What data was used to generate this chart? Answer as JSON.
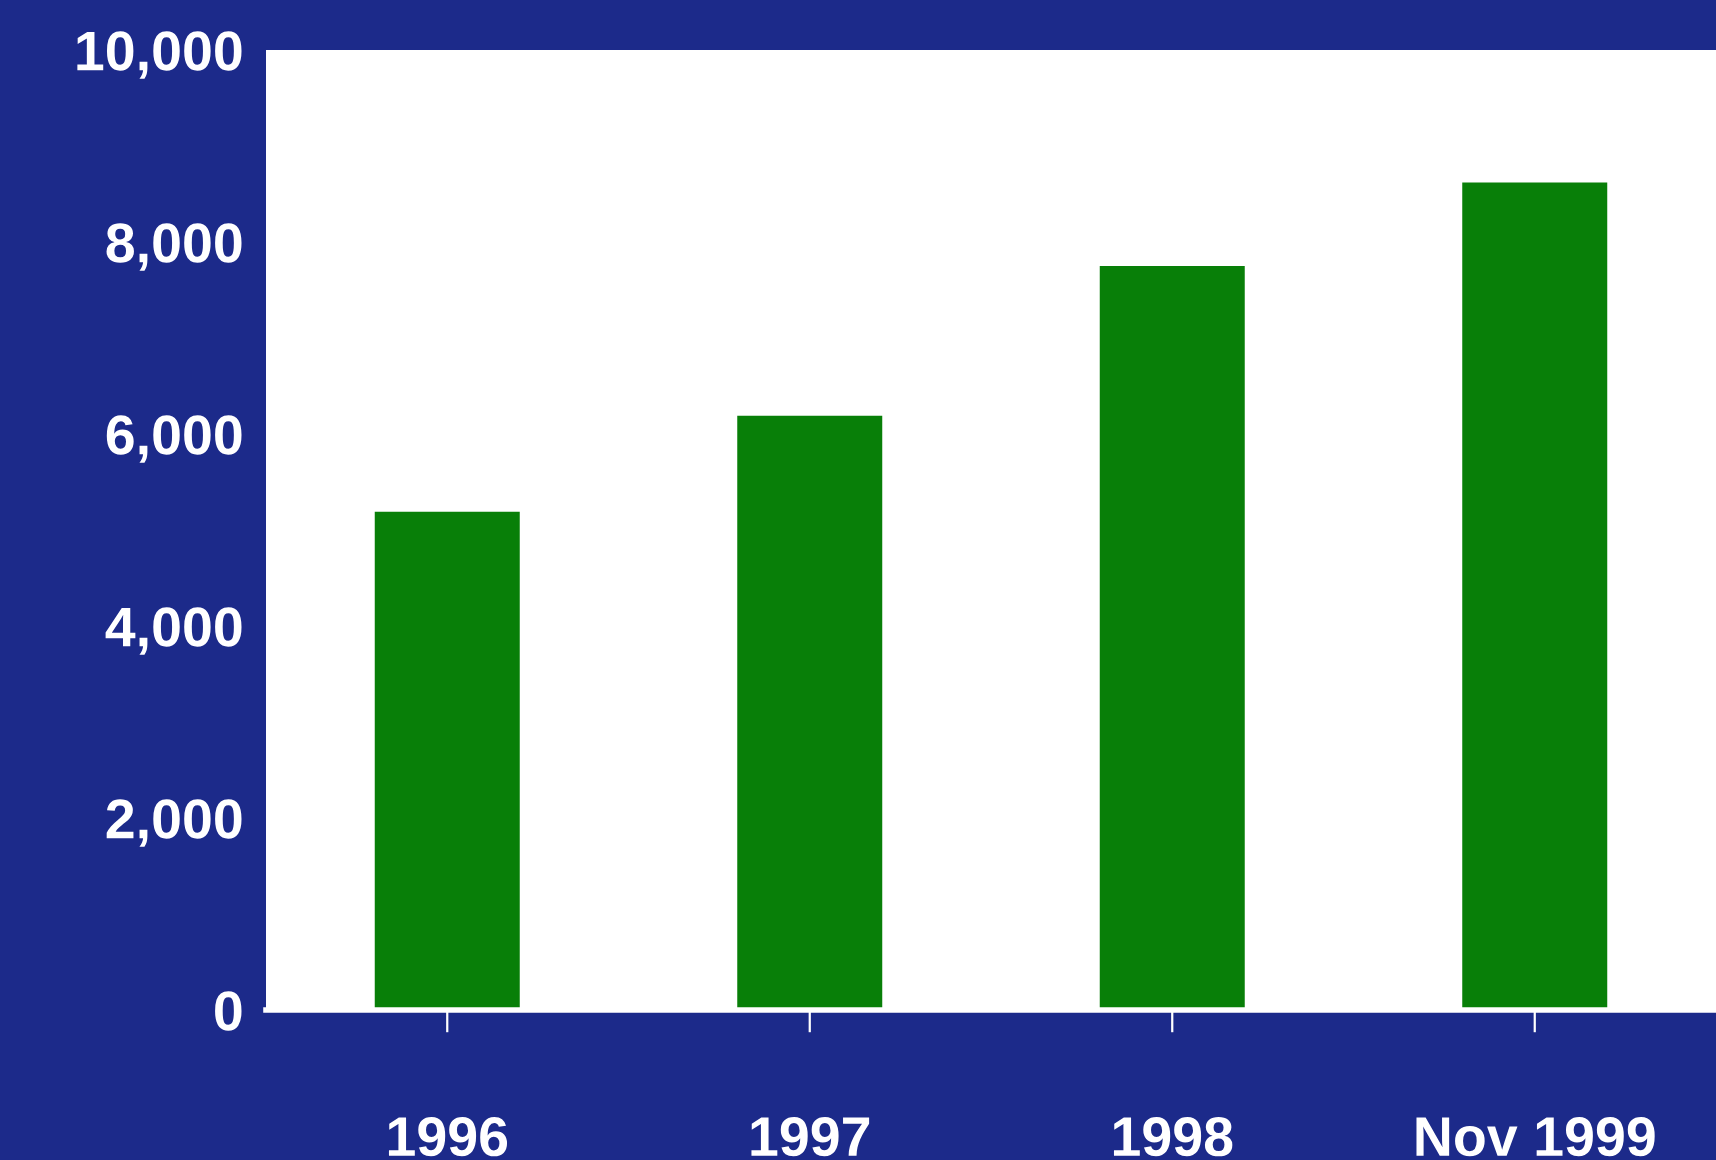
{
  "chart_data": {
    "type": "bar",
    "categories": [
      "1996",
      "1997",
      "1998",
      "Nov 1999"
    ],
    "values": [
      5190,
      6190,
      7750,
      8620
    ],
    "color": "#087f08",
    "ylim": [
      0,
      10000
    ],
    "yticks": [
      {
        "value": 0,
        "label": "0"
      },
      {
        "value": 2000,
        "label": "2,000"
      },
      {
        "value": 4000,
        "label": "4,000"
      },
      {
        "value": 6000,
        "label": "6,000"
      },
      {
        "value": 8000,
        "label": "8,000"
      },
      {
        "value": 10000,
        "label": "10,000"
      }
    ],
    "grid": false,
    "legend": false
  }
}
